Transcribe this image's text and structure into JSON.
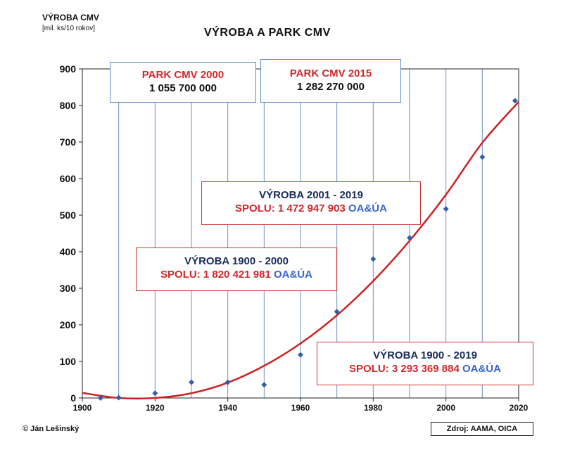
{
  "header": {
    "ylabel_main": "VÝROBA CMV",
    "ylabel_unit": "[mil. ks/10 rokov]",
    "title": "VÝROBA A PARK CMV"
  },
  "boxes": {
    "park2000_label": "PARK CMV 2000",
    "park2000_value": "1 055 700 000",
    "park2015_label": "PARK CMV 2015",
    "park2015_value": "1 282 270 000",
    "vyroba_2001_2019_label": "VÝROBA   2001 - 2019",
    "vyroba_2001_2019_spolu": "SPOLU: 1 472 947 903",
    "vyroba_1900_2000_label": "VÝROBA   1900 - 2000",
    "vyroba_1900_2000_spolu": "SPOLU: 1 820 421 981",
    "vyroba_1900_2019_label": "VÝROBA   1900 - 2019",
    "vyroba_1900_2019_spolu": "SPOLU: 3 293 369 884",
    "suffix": "OA&ÚA"
  },
  "footer": {
    "copyright": "© Ján Lešinský",
    "source": "Zdroj:  AAMA,  OICA"
  },
  "colors": {
    "points": "#2e5fa8",
    "trend": "#cc2222",
    "grid": "#6f8fc4",
    "accent_red": "#d0282b",
    "accent_blue": "#3b66c4"
  },
  "chart_data": {
    "type": "scatter",
    "title": "VÝROBA A PARK CMV",
    "ylabel": "VÝROBA CMV [mil. ks/10 rokov]",
    "xlabel": "",
    "xlim": [
      1900,
      2020
    ],
    "ylim": [
      0,
      900
    ],
    "x_ticks": [
      1900,
      1920,
      1940,
      1960,
      1980,
      2000,
      2020
    ],
    "y_ticks": [
      0,
      100,
      200,
      300,
      400,
      500,
      600,
      700,
      800,
      900
    ],
    "vertical_grid_x": [
      1910,
      1920,
      1930,
      1940,
      1950,
      1960,
      1970,
      1980,
      1990,
      2000,
      2010
    ],
    "series": [
      {
        "points": [
          {
            "x": 1905,
            "y": 0
          },
          {
            "x": 1910,
            "y": 1
          },
          {
            "x": 1920,
            "y": 13
          },
          {
            "x": 1930,
            "y": 43
          },
          {
            "x": 1940,
            "y": 43
          },
          {
            "x": 1950,
            "y": 36
          },
          {
            "x": 1960,
            "y": 118
          },
          {
            "x": 1970,
            "y": 236
          },
          {
            "x": 1980,
            "y": 380
          },
          {
            "x": 1990,
            "y": 438
          },
          {
            "x": 2000,
            "y": 517
          },
          {
            "x": 2010,
            "y": 659
          },
          {
            "x": 2019,
            "y": 813
          }
        ]
      }
    ],
    "trendline": {
      "type": "polynomial",
      "points": [
        {
          "x": 1900,
          "y": 14
        },
        {
          "x": 1910,
          "y": 0
        },
        {
          "x": 1920,
          "y": 0
        },
        {
          "x": 1930,
          "y": 13
        },
        {
          "x": 1940,
          "y": 42
        },
        {
          "x": 1950,
          "y": 88
        },
        {
          "x": 1960,
          "y": 149
        },
        {
          "x": 1970,
          "y": 226
        },
        {
          "x": 1980,
          "y": 320
        },
        {
          "x": 1990,
          "y": 430
        },
        {
          "x": 2000,
          "y": 556
        },
        {
          "x": 2010,
          "y": 698
        },
        {
          "x": 2020,
          "y": 810
        }
      ]
    }
  }
}
